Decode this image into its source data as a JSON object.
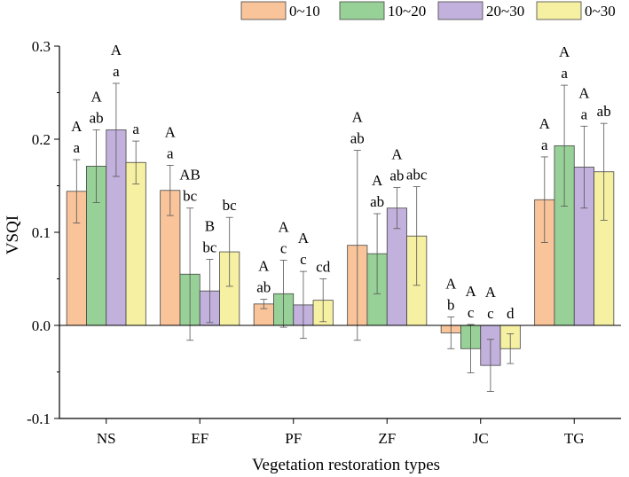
{
  "chart_data": {
    "type": "bar",
    "title": "",
    "xlabel": "Vegetation restoration types",
    "ylabel": "VSQI",
    "categories": [
      "NS",
      "EF",
      "PF",
      "ZF",
      "JC",
      "TG"
    ],
    "ylim": [
      -0.1,
      0.3
    ],
    "yticks": [
      -0.1,
      0.0,
      0.1,
      0.2,
      0.3
    ],
    "ytick_labels": [
      "-0.1",
      "0.0",
      "0.1",
      "0.2",
      "0.3"
    ],
    "grid": false,
    "legend_position": "top-right",
    "series": [
      {
        "name": "0~10",
        "color": "#f9c49a",
        "values": [
          0.144,
          0.145,
          0.023,
          0.086,
          -0.008,
          0.135
        ],
        "errors": [
          0.034,
          0.027,
          0.005,
          0.102,
          0.017,
          0.046
        ],
        "sig_upper": [
          "A",
          "A",
          "A",
          "A",
          "A",
          "A"
        ],
        "sig_lower": [
          "a",
          "a",
          "ab",
          "ab",
          "b",
          "a"
        ]
      },
      {
        "name": "10~20",
        "color": "#97d197",
        "values": [
          0.171,
          0.055,
          0.034,
          0.077,
          -0.025,
          0.193
        ],
        "errors": [
          0.039,
          0.071,
          0.036,
          0.043,
          0.026,
          0.065
        ],
        "sig_upper": [
          "A",
          "AB",
          "A",
          "A",
          "A",
          "A"
        ],
        "sig_lower": [
          "ab",
          "bc",
          "c",
          "ab",
          "c",
          "a"
        ]
      },
      {
        "name": "20~30",
        "color": "#c2b1dc",
        "values": [
          0.21,
          0.037,
          0.022,
          0.126,
          -0.043,
          0.17
        ],
        "errors": [
          0.05,
          0.034,
          0.036,
          0.022,
          0.028,
          0.044
        ],
        "sig_upper": [
          "A",
          "B",
          "A",
          "A",
          "A",
          "A"
        ],
        "sig_lower": [
          "a",
          "bc",
          "c",
          "ab",
          "c",
          "a"
        ]
      },
      {
        "name": "0~30",
        "color": "#f6f0a2",
        "values": [
          0.175,
          0.079,
          0.027,
          0.096,
          -0.025,
          0.165
        ],
        "errors": [
          0.023,
          0.037,
          0.023,
          0.053,
          0.016,
          0.052
        ],
        "sig_upper": [
          "",
          "",
          "",
          "",
          "",
          ""
        ],
        "sig_lower": [
          "a",
          "bc",
          "cd",
          "abc",
          "d",
          "ab"
        ]
      }
    ]
  }
}
